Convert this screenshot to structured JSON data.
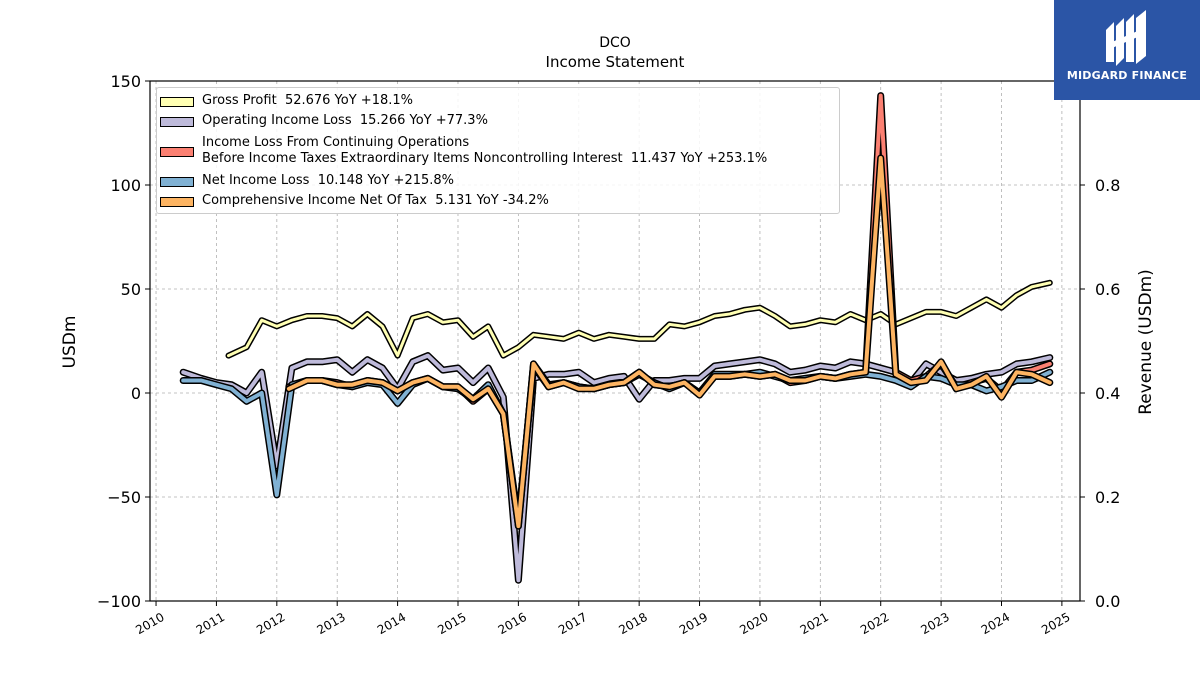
{
  "header": {
    "ticker": "DCO",
    "subtitle": "Income Statement"
  },
  "brand": {
    "name": "MIDGARD FINANCE",
    "color": "#2b55a6",
    "icon": "midgard-logo-icon"
  },
  "chart_data": {
    "type": "line",
    "title": "DCO",
    "subtitle": "Income Statement",
    "xlabel": "",
    "ylabel": "USDm",
    "y2label": "Revenue (USDm)",
    "ylim": [
      -100,
      150
    ],
    "y2lim": [
      0.0,
      1.0
    ],
    "xlim": [
      2009.9,
      2025.3
    ],
    "grid": true,
    "legend_position": "top-left",
    "x_ticks": [
      "2010",
      "2011",
      "2012",
      "2013",
      "2014",
      "2015",
      "2016",
      "2017",
      "2018",
      "2019",
      "2020",
      "2021",
      "2022",
      "2023",
      "2024",
      "2025"
    ],
    "y_ticks": [
      "−100",
      "−50",
      "0",
      "50",
      "100",
      "150"
    ],
    "y2_ticks": [
      "0.0",
      "0.2",
      "0.4",
      "0.6",
      "0.8"
    ],
    "series": [
      {
        "name": "Gross Profit",
        "legend": "Gross Profit  52.676 YoY +18.1%",
        "color": "#ffffb3",
        "x": [
          2011.2,
          2011.5,
          2011.75,
          2012.0,
          2012.25,
          2012.5,
          2012.75,
          2013.0,
          2013.25,
          2013.5,
          2013.75,
          2014.0,
          2014.25,
          2014.5,
          2014.75,
          2015.0,
          2015.25,
          2015.5,
          2015.75,
          2016.0,
          2016.25,
          2016.5,
          2016.75,
          2017.0,
          2017.25,
          2017.5,
          2017.75,
          2018.0,
          2018.25,
          2018.5,
          2018.75,
          2019.0,
          2019.25,
          2019.5,
          2019.75,
          2020.0,
          2020.25,
          2020.5,
          2020.75,
          2021.0,
          2021.25,
          2021.5,
          2021.75,
          2022.0,
          2022.25,
          2022.5,
          2022.75,
          2023.0,
          2023.25,
          2023.5,
          2023.75,
          2024.0,
          2024.25,
          2024.5,
          2024.8
        ],
        "values": [
          18,
          22,
          35,
          32,
          35,
          37,
          37,
          36,
          32,
          38,
          32,
          18,
          36,
          38,
          34,
          35,
          27,
          32,
          18,
          22,
          28,
          27,
          26,
          29,
          26,
          28,
          27,
          26,
          26,
          33,
          32,
          34,
          37,
          38,
          40,
          41,
          37,
          32,
          33,
          35,
          34,
          38,
          35,
          38,
          33,
          36,
          39,
          39,
          37,
          41,
          45,
          41,
          47,
          51,
          53
        ]
      },
      {
        "name": "Operating Income Loss",
        "legend": "Operating Income Loss  15.266 YoY +77.3%",
        "color": "#bebada",
        "x": [
          2010.45,
          2010.75,
          2011.0,
          2011.25,
          2011.5,
          2011.75,
          2012.0,
          2012.25,
          2012.5,
          2012.75,
          2013.0,
          2013.25,
          2013.5,
          2013.75,
          2014.0,
          2014.25,
          2014.5,
          2014.75,
          2015.0,
          2015.25,
          2015.5,
          2015.75,
          2016.0,
          2016.25,
          2016.5,
          2016.75,
          2017.0,
          2017.25,
          2017.5,
          2017.75,
          2018.0,
          2018.25,
          2018.5,
          2018.75,
          2019.0,
          2019.25,
          2019.5,
          2019.75,
          2020.0,
          2020.25,
          2020.5,
          2020.75,
          2021.0,
          2021.25,
          2021.5,
          2021.75,
          2022.0,
          2022.25,
          2022.5,
          2022.75,
          2023.0,
          2023.25,
          2023.5,
          2023.75,
          2024.0,
          2024.25,
          2024.5,
          2024.8
        ],
        "values": [
          10,
          7,
          5,
          4,
          0,
          10,
          -35,
          12,
          15,
          15,
          16,
          10,
          16,
          12,
          2,
          15,
          18,
          11,
          12,
          5,
          12,
          -2,
          -90,
          7,
          9,
          9,
          10,
          5,
          7,
          8,
          -3,
          6,
          6,
          7,
          7,
          13,
          14,
          15,
          16,
          14,
          10,
          11,
          13,
          12,
          15,
          14,
          12,
          10,
          5,
          14,
          10,
          6,
          7,
          9,
          10,
          14,
          15,
          17
        ]
      },
      {
        "name": "Income Loss From Continuing Operations Before Income Taxes Extraordinary Items Noncontrolling Interest",
        "legend": "Income Loss From Continuing Operations\nBefore Income Taxes Extraordinary Items Noncontrolling Interest  11.437 YoY +253.1%",
        "color": "#fb8072",
        "x": [
          2012.2,
          2012.5,
          2012.75,
          2013.0,
          2013.25,
          2013.5,
          2013.75,
          2014.0,
          2014.25,
          2014.5,
          2014.75,
          2015.0,
          2015.25,
          2015.5,
          2015.75,
          2016.0,
          2016.25,
          2016.5,
          2016.75,
          2017.0,
          2017.25,
          2017.5,
          2017.75,
          2018.0,
          2018.25,
          2018.5,
          2018.75,
          2019.0,
          2019.25,
          2019.5,
          2019.75,
          2020.0,
          2020.25,
          2020.5,
          2020.75,
          2021.0,
          2021.25,
          2021.5,
          2021.75,
          2022.0,
          2022.25,
          2022.5,
          2022.75,
          2023.0,
          2023.25,
          2023.5,
          2023.75,
          2024.0,
          2024.25,
          2024.5,
          2024.8
        ],
        "values": [
          3,
          6,
          6,
          5,
          3,
          6,
          5,
          1,
          5,
          7,
          3,
          3,
          -4,
          2,
          -10,
          -64,
          14,
          4,
          5,
          3,
          2,
          4,
          5,
          10,
          4,
          3,
          5,
          0,
          8,
          8,
          9,
          8,
          9,
          5,
          6,
          8,
          7,
          9,
          10,
          143,
          10,
          6,
          8,
          14,
          3,
          5,
          7,
          1,
          10,
          11,
          14
        ]
      },
      {
        "name": "Net Income Loss",
        "legend": "Net Income Loss  10.148 YoY +215.8%",
        "color": "#80b1d3",
        "x": [
          2010.45,
          2010.75,
          2011.0,
          2011.25,
          2011.5,
          2011.75,
          2012.0,
          2012.25,
          2012.5,
          2012.75,
          2013.0,
          2013.25,
          2013.5,
          2013.75,
          2014.0,
          2014.25,
          2014.5,
          2014.75,
          2015.0,
          2015.25,
          2015.5,
          2015.75,
          2016.0,
          2016.25,
          2016.5,
          2016.75,
          2017.0,
          2017.25,
          2017.5,
          2017.75,
          2018.0,
          2018.25,
          2018.5,
          2018.75,
          2019.0,
          2019.25,
          2019.5,
          2019.75,
          2020.0,
          2020.25,
          2020.5,
          2020.75,
          2021.0,
          2021.25,
          2021.5,
          2021.75,
          2022.0,
          2022.25,
          2022.5,
          2022.75,
          2023.0,
          2023.25,
          2023.5,
          2023.75,
          2024.0,
          2024.25,
          2024.5,
          2024.8
        ],
        "values": [
          6,
          6,
          4,
          2,
          -4,
          0,
          -49,
          4,
          6,
          6,
          4,
          3,
          5,
          4,
          -5,
          4,
          7,
          3,
          2,
          -3,
          4,
          -10,
          -62,
          13,
          3,
          5,
          3,
          2,
          4,
          5,
          9,
          5,
          2,
          5,
          0,
          9,
          9,
          9,
          10,
          8,
          6,
          7,
          8,
          7,
          8,
          9,
          8,
          6,
          3,
          8,
          7,
          4,
          4,
          1,
          3,
          6,
          6,
          10
        ]
      },
      {
        "name": "Comprehensive Income Net Of Tax",
        "legend": "Comprehensive Income Net Of Tax  5.131 YoY -34.2%",
        "color": "#fdb462",
        "x": [
          2012.2,
          2012.5,
          2012.75,
          2013.0,
          2013.25,
          2013.5,
          2013.75,
          2014.0,
          2014.25,
          2014.5,
          2014.75,
          2015.0,
          2015.25,
          2015.5,
          2015.75,
          2016.0,
          2016.25,
          2016.5,
          2016.75,
          2017.0,
          2017.25,
          2017.5,
          2017.75,
          2018.0,
          2018.25,
          2018.5,
          2018.75,
          2019.0,
          2019.25,
          2019.5,
          2019.75,
          2020.0,
          2020.25,
          2020.5,
          2020.75,
          2021.0,
          2021.25,
          2021.5,
          2021.75,
          2022.0,
          2022.25,
          2022.5,
          2022.75,
          2023.0,
          2023.25,
          2023.5,
          2023.75,
          2024.0,
          2024.25,
          2024.5,
          2024.8
        ],
        "values": [
          2,
          6,
          6,
          4,
          4,
          6,
          5,
          1,
          5,
          7,
          3,
          3,
          -3,
          2,
          -10,
          -64,
          14,
          3,
          5,
          2,
          2,
          4,
          5,
          10,
          4,
          3,
          5,
          -1,
          8,
          8,
          9,
          8,
          9,
          6,
          6,
          8,
          7,
          9,
          10,
          113,
          9,
          5,
          6,
          15,
          2,
          4,
          8,
          -2,
          10,
          9,
          5
        ]
      }
    ]
  }
}
